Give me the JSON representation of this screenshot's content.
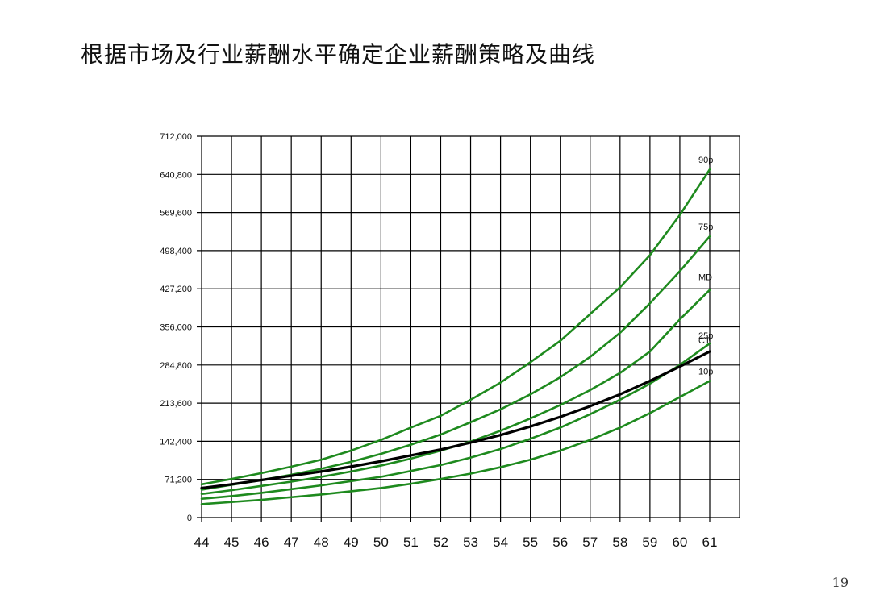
{
  "title": "根据市场及行业薪酬水平确定企业薪酬策略及曲线",
  "page_number": "19",
  "colors": {
    "grid": "#000000",
    "percentile_line": "#1e8a1e",
    "company_line": "#000000"
  },
  "chart_data": {
    "type": "line",
    "title": "",
    "xlabel": "",
    "ylabel": "",
    "x": [
      44,
      45,
      46,
      47,
      48,
      49,
      50,
      51,
      52,
      53,
      54,
      55,
      56,
      57,
      58,
      59,
      60,
      61
    ],
    "xlim": [
      44,
      61
    ],
    "ylim": [
      0,
      712000
    ],
    "y_ticks": [
      "0",
      "71,200",
      "142,400",
      "213,600",
      "284,800",
      "356,000",
      "427,200",
      "498,400",
      "569,600",
      "640,800",
      "712,000"
    ],
    "y_tick_values": [
      0,
      71200,
      142400,
      213600,
      284800,
      356000,
      427200,
      498400,
      569600,
      640800,
      712000
    ],
    "grid": true,
    "series": [
      {
        "name": "90p",
        "color": "#1e8a1e",
        "values": [
          62000,
          72000,
          83000,
          95000,
          108000,
          125000,
          145000,
          168000,
          190000,
          220000,
          252000,
          290000,
          330000,
          380000,
          430000,
          490000,
          565000,
          650000
        ]
      },
      {
        "name": "75p",
        "color": "#1e8a1e",
        "values": [
          52000,
          61000,
          70000,
          80000,
          91000,
          104000,
          119000,
          136000,
          155000,
          178000,
          202000,
          230000,
          262000,
          300000,
          345000,
          400000,
          460000,
          525000
        ]
      },
      {
        "name": "MD",
        "color": "#1e8a1e",
        "values": [
          44000,
          51000,
          59000,
          67000,
          76000,
          86000,
          97000,
          110000,
          125000,
          142000,
          162000,
          185000,
          210000,
          238000,
          270000,
          310000,
          370000,
          425000
        ]
      },
      {
        "name": "25p",
        "color": "#1e8a1e",
        "values": [
          35000,
          40000,
          46000,
          53000,
          60000,
          68000,
          76000,
          87000,
          98000,
          112000,
          128000,
          147000,
          168000,
          193000,
          220000,
          250000,
          285000,
          325000
        ]
      },
      {
        "name": "10p",
        "color": "#1e8a1e",
        "values": [
          25000,
          29000,
          33000,
          38000,
          43000,
          49000,
          55000,
          63000,
          72000,
          82000,
          94000,
          108000,
          125000,
          145000,
          168000,
          195000,
          225000,
          255000
        ]
      },
      {
        "name": "CT",
        "color": "#000000",
        "values": [
          55000,
          62000,
          70000,
          78000,
          86000,
          95000,
          105000,
          116000,
          127000,
          140000,
          154000,
          170000,
          188000,
          208000,
          230000,
          255000,
          282000,
          310000
        ]
      }
    ]
  }
}
